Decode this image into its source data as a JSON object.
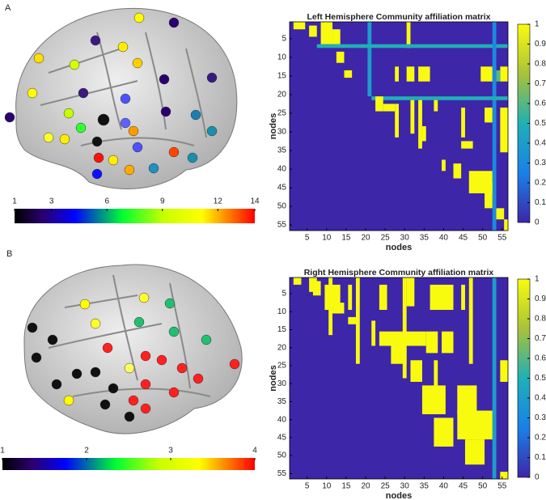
{
  "panel_labels": [
    "A",
    "B"
  ],
  "chart_data": [
    {
      "type": "colorbar",
      "colormap": "jet",
      "clim": [
        1,
        14
      ],
      "cticks": [
        1,
        3,
        6,
        9,
        12,
        14
      ]
    },
    {
      "type": "heatmap",
      "title": "Left Hemisphere Community affiliation matrix",
      "xlabel": "nodes",
      "ylabel": "nodes",
      "xlim": [
        0.5,
        56.5
      ],
      "ylim": [
        0.5,
        56.5
      ],
      "xticks": [
        5,
        10,
        15,
        20,
        25,
        30,
        35,
        40,
        45,
        50,
        55
      ],
      "yticks": [
        5,
        10,
        15,
        20,
        25,
        30,
        35,
        40,
        45,
        50,
        55
      ],
      "clim": [
        0,
        1
      ],
      "cticks": [
        0,
        0.1,
        0.2,
        0.3,
        0.4,
        0.5,
        0.6,
        0.7,
        0.8,
        0.9,
        1
      ],
      "cells": [
        [
          1,
          2,
          2,
          4,
          1
        ],
        [
          2,
          4,
          6,
          7,
          1
        ],
        [
          1,
          6,
          9,
          11,
          1
        ],
        [
          3,
          6,
          12,
          13,
          1
        ],
        [
          1,
          20,
          21,
          21,
          0.4
        ],
        [
          1,
          7,
          31,
          31,
          1
        ],
        [
          7,
          7,
          8,
          56,
          0.5
        ],
        [
          1,
          56,
          53,
          53,
          0.3
        ],
        [
          21,
          21,
          22,
          56,
          0.5
        ],
        [
          9,
          11,
          13,
          14,
          1
        ],
        [
          14,
          15,
          15,
          16,
          1
        ],
        [
          13,
          16,
          31,
          32,
          1
        ],
        [
          13,
          16,
          28,
          28,
          1
        ],
        [
          13,
          16,
          34,
          36,
          1
        ],
        [
          13,
          16,
          50,
          52,
          1
        ],
        [
          13,
          16,
          55,
          56,
          1
        ],
        [
          14,
          16,
          54,
          54,
          0.6
        ],
        [
          23,
          24,
          25,
          27,
          1
        ],
        [
          23,
          31,
          28,
          28,
          1
        ],
        [
          22,
          30,
          32,
          32,
          1
        ],
        [
          22,
          34,
          34,
          34,
          1
        ],
        [
          22,
          24,
          38,
          38,
          1
        ],
        [
          24,
          31,
          45,
          45,
          1
        ],
        [
          24,
          35,
          55,
          56,
          1
        ],
        [
          24,
          27,
          51,
          52,
          1
        ],
        [
          29,
          32,
          35,
          35,
          1
        ],
        [
          33,
          34,
          45,
          47,
          1
        ],
        [
          38,
          40,
          40,
          40,
          1
        ],
        [
          39,
          42,
          43,
          44,
          1
        ],
        [
          41,
          46,
          47,
          52,
          1
        ],
        [
          44,
          50,
          51,
          52,
          1
        ],
        [
          51,
          53,
          54,
          55,
          1
        ],
        [
          54,
          56,
          56,
          56,
          1
        ],
        [
          21,
          24,
          23,
          24,
          1
        ]
      ]
    },
    {
      "type": "colorbar",
      "colormap": "jet",
      "clim": [
        1,
        4
      ],
      "cticks": [
        1,
        2,
        3,
        4
      ]
    },
    {
      "type": "heatmap",
      "title": "Right Hemisphere Community affiliation matrix",
      "xlabel": "nodes",
      "ylabel": "nodes",
      "xlim": [
        0.5,
        56.5
      ],
      "ylim": [
        0.5,
        56.5
      ],
      "xticks": [
        5,
        10,
        15,
        20,
        25,
        30,
        35,
        40,
        45,
        50,
        55
      ],
      "yticks": [
        5,
        10,
        15,
        20,
        25,
        30,
        35,
        40,
        45,
        50,
        55
      ],
      "clim": [
        0,
        1
      ],
      "cticks": [
        0,
        0.1,
        0.2,
        0.3,
        0.4,
        0.5,
        0.6,
        0.7,
        0.8,
        0.9,
        1
      ],
      "cells": [
        [
          1,
          2,
          2,
          3,
          1
        ],
        [
          1,
          4,
          6,
          7,
          1
        ],
        [
          2,
          5,
          7,
          8,
          1
        ],
        [
          1,
          16,
          11,
          11,
          1
        ],
        [
          3,
          9,
          10,
          13,
          1
        ],
        [
          3,
          9,
          16,
          16,
          1
        ],
        [
          1,
          24,
          18,
          18,
          1
        ],
        [
          3,
          9,
          24,
          25,
          1
        ],
        [
          1,
          28,
          30,
          30,
          1
        ],
        [
          1,
          8,
          31,
          32,
          1
        ],
        [
          3,
          9,
          37,
          42,
          1
        ],
        [
          3,
          9,
          45,
          45,
          1
        ],
        [
          1,
          24,
          47,
          47,
          1
        ],
        [
          1,
          56,
          53,
          53,
          0.4
        ],
        [
          12,
          13,
          16,
          17,
          1
        ],
        [
          13,
          19,
          22,
          22,
          1
        ],
        [
          16,
          19,
          24,
          35,
          1
        ],
        [
          16,
          21,
          40,
          42,
          1
        ],
        [
          16,
          21,
          36,
          38,
          1
        ],
        [
          20,
          24,
          27,
          30,
          1
        ],
        [
          24,
          29,
          32,
          34,
          1
        ],
        [
          24,
          33,
          38,
          38,
          1
        ],
        [
          24,
          29,
          55,
          56,
          1
        ],
        [
          31,
          38,
          35,
          40,
          1
        ],
        [
          31,
          38,
          44,
          48,
          1
        ],
        [
          38,
          45,
          44,
          52,
          1
        ],
        [
          40,
          47,
          38,
          42,
          1
        ],
        [
          46,
          52,
          46,
          50,
          1
        ],
        [
          55,
          56,
          55,
          56,
          1
        ],
        [
          8,
          10,
          12,
          14,
          1
        ]
      ]
    }
  ]
}
